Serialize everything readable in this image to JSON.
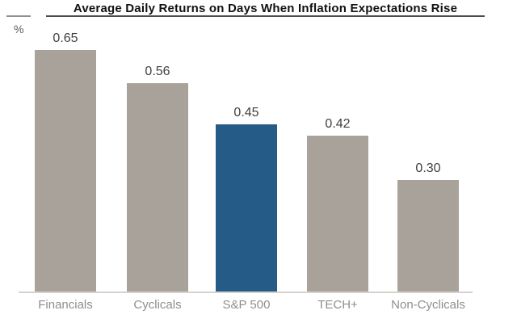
{
  "chart": {
    "title": "Average Daily Returns on Days When Inflation Expectations Rise",
    "unit_label": "%"
  },
  "chart_data": {
    "type": "bar",
    "title": "Average Daily Returns on Days When Inflation Expectations Rise",
    "xlabel": "",
    "ylabel": "%",
    "categories": [
      "Financials",
      "Cyclicals",
      "S&P 500",
      "TECH+",
      "Non-Cyclicals"
    ],
    "values": [
      0.65,
      0.56,
      0.45,
      0.42,
      0.3
    ],
    "value_labels": [
      "0.65",
      "0.56",
      "0.45",
      "0.42",
      "0.30"
    ],
    "highlight_index": 2,
    "bar_color": "#a9a29b",
    "highlight_color": "#255c87",
    "value_label_color": "#3f3f3f",
    "category_label_color": "#8e8e8e",
    "axis_line_color": "#d5d2ce",
    "ylim": [
      0,
      0.7
    ],
    "grid": false,
    "data_labels": true,
    "legend": false
  }
}
